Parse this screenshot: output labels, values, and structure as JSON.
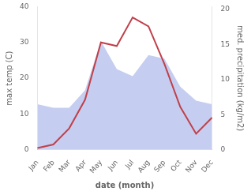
{
  "chart_data": {
    "type": "line",
    "categories": [
      "Jan",
      "Feb",
      "Mar",
      "Apr",
      "May",
      "Jun",
      "Jul",
      "Aug",
      "Sep",
      "Oct",
      "Nov",
      "Dec"
    ],
    "series": [
      {
        "type": "area",
        "color": "#c5cef0",
        "axis": "y2",
        "values": [
          6.5,
          6.0,
          6.0,
          8.5,
          15.5,
          11.5,
          10.5,
          13.5,
          13.0,
          9.0,
          7.0,
          6.5
        ]
      },
      {
        "type": "line",
        "color": "#c0404a",
        "values": [
          0.5,
          1.5,
          6.0,
          14.0,
          30.0,
          29.0,
          37.0,
          34.5,
          24.0,
          12.0,
          4.5,
          9.0
        ]
      }
    ],
    "xlabel": "date (month)",
    "ylabel": "max temp (C)",
    "y2label": "med. precipitation (kg/m2)",
    "ylim": [
      0,
      40
    ],
    "yticks": [
      0,
      10,
      20,
      30,
      40
    ],
    "y2lim": [
      0,
      20.4
    ],
    "y2ticks": [
      0,
      5,
      10,
      15,
      20
    ],
    "grid": false
  }
}
